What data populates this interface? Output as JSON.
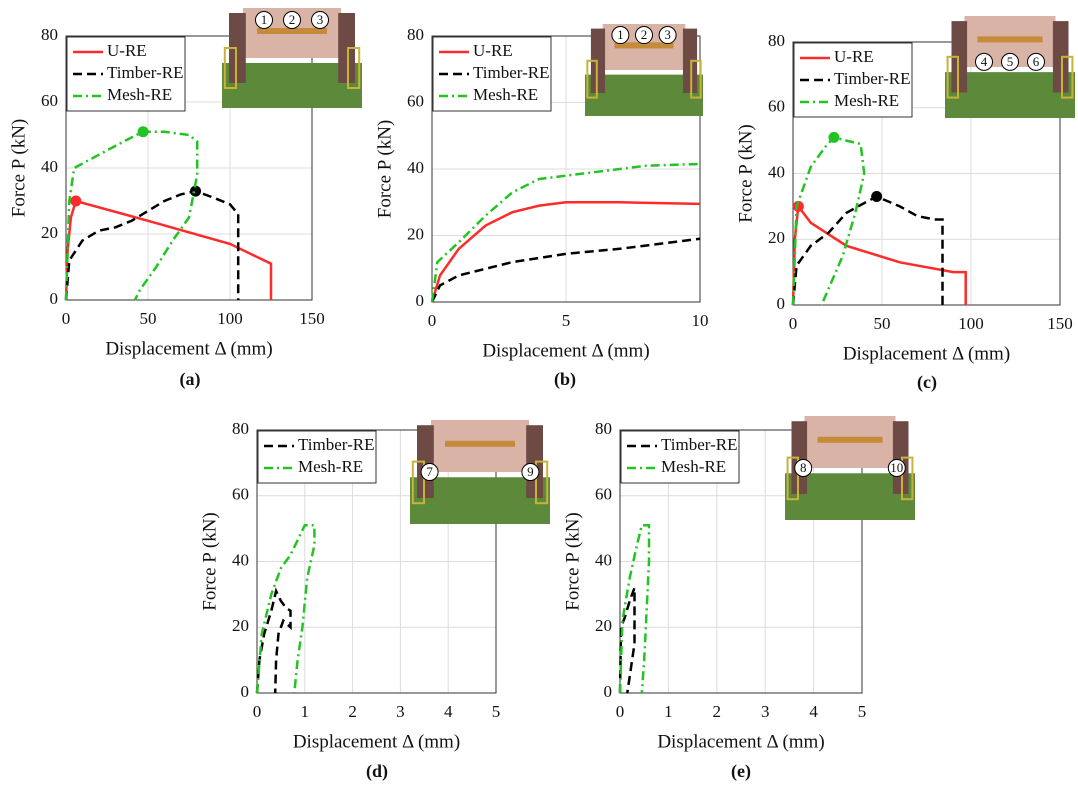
{
  "chart_data": [
    {
      "type": "line",
      "panel_label": "(a)",
      "x_label": "Displacement Δ (mm)",
      "y_label": "Force P (kN)",
      "xlim": [
        0,
        150
      ],
      "xticks": [
        0,
        50,
        100,
        150
      ],
      "ylim": [
        0,
        80
      ],
      "yticks": [
        0,
        20,
        40,
        60,
        80
      ],
      "grid": true,
      "legend": "upper left",
      "inset_labels": [
        "1",
        "2",
        "3"
      ],
      "series": [
        {
          "name": "U-RE",
          "color": "#ff2a2a",
          "line_style": "solid",
          "x": [
            0,
            1,
            3,
            6,
            50,
            100,
            125,
            125
          ],
          "values": [
            0,
            15,
            25,
            30,
            24,
            17,
            11,
            0
          ],
          "peak": {
            "x": 6,
            "y": 30
          }
        },
        {
          "name": "Timber-RE",
          "color": "#000000",
          "line_style": "dashed",
          "x": [
            0,
            2,
            10,
            20,
            30,
            40,
            50,
            60,
            70,
            79,
            90,
            100,
            105,
            105
          ],
          "values": [
            0,
            12,
            18,
            21,
            22,
            24,
            27,
            30,
            32,
            33,
            31,
            29,
            26,
            0
          ],
          "peak": {
            "x": 79,
            "y": 33
          }
        },
        {
          "name": "Mesh-RE",
          "color": "#22c422",
          "line_style": "dashdot",
          "x": [
            0,
            2,
            5,
            20,
            35,
            47,
            60,
            75,
            80,
            80,
            75,
            65,
            55,
            45,
            42
          ],
          "values": [
            0,
            30,
            40,
            44,
            48,
            51,
            51,
            50,
            48,
            38,
            25,
            18,
            10,
            3,
            0
          ],
          "peak": {
            "x": 47,
            "y": 51
          }
        }
      ]
    },
    {
      "type": "line",
      "panel_label": "(b)",
      "x_label": "Displacement Δ (mm)",
      "y_label": "Force P (kN)",
      "xlim": [
        0,
        10
      ],
      "xticks": [
        0,
        5,
        10
      ],
      "ylim": [
        0,
        80
      ],
      "yticks": [
        0,
        20,
        40,
        60,
        80
      ],
      "grid": true,
      "legend": "upper left",
      "inset_labels": [
        "1",
        "2",
        "3"
      ],
      "series": [
        {
          "name": "U-RE",
          "color": "#ff2a2a",
          "line_style": "solid",
          "x": [
            0,
            0.3,
            1,
            2,
            3,
            4,
            5,
            7,
            10
          ],
          "values": [
            0,
            8,
            16,
            23,
            27,
            29,
            30,
            30,
            29.5
          ]
        },
        {
          "name": "Timber-RE",
          "color": "#000000",
          "line_style": "dashed",
          "x": [
            0,
            0.3,
            1,
            3,
            5,
            7,
            10
          ],
          "values": [
            0,
            5,
            8,
            12,
            14.5,
            16,
            19
          ]
        },
        {
          "name": "Mesh-RE",
          "color": "#22c422",
          "line_style": "dashdot",
          "x": [
            0,
            0.2,
            1,
            2,
            3,
            4,
            5,
            7,
            8,
            10
          ],
          "values": [
            0,
            12,
            18,
            26,
            33,
            37,
            38,
            40,
            41,
            41.5
          ]
        }
      ]
    },
    {
      "type": "line",
      "panel_label": "(c)",
      "x_label": "Displacement Δ (mm)",
      "y_label": "Force P (kN)",
      "xlim": [
        0,
        150
      ],
      "xticks": [
        0,
        50,
        100,
        150
      ],
      "ylim": [
        0,
        80
      ],
      "yticks": [
        0,
        20,
        40,
        60,
        80
      ],
      "grid": true,
      "legend": "upper left",
      "inset_labels": [
        "4",
        "5",
        "6"
      ],
      "series": [
        {
          "name": "U-RE",
          "color": "#ff2a2a",
          "line_style": "solid",
          "x": [
            0,
            1,
            3,
            10,
            30,
            60,
            90,
            97,
            97
          ],
          "values": [
            0,
            20,
            30,
            25,
            18,
            13,
            10,
            10,
            0
          ],
          "peak": {
            "x": 3,
            "y": 30
          }
        },
        {
          "name": "Timber-RE",
          "color": "#000000",
          "line_style": "dashed",
          "x": [
            0,
            2,
            10,
            20,
            30,
            40,
            47,
            60,
            70,
            80,
            84,
            84
          ],
          "values": [
            0,
            12,
            18,
            22,
            28,
            31,
            33,
            30,
            27,
            26,
            26,
            0
          ],
          "peak": {
            "x": 47,
            "y": 33
          }
        },
        {
          "name": "Mesh-RE",
          "color": "#22c422",
          "line_style": "dashdot",
          "x": [
            0,
            2,
            10,
            18,
            23,
            30,
            38,
            40,
            35,
            28,
            20,
            16
          ],
          "values": [
            0,
            30,
            42,
            48,
            51,
            50,
            49,
            40,
            28,
            15,
            5,
            0
          ],
          "peak": {
            "x": 23,
            "y": 51
          }
        }
      ]
    },
    {
      "type": "line",
      "panel_label": "(d)",
      "x_label": "Displacement Δ (mm)",
      "y_label": "Force P (kN)",
      "xlim": [
        0,
        5
      ],
      "xticks": [
        0,
        1,
        2,
        3,
        4,
        5
      ],
      "ylim": [
        0,
        80
      ],
      "yticks": [
        0,
        20,
        40,
        60,
        80
      ],
      "grid": true,
      "legend": "upper left",
      "inset_labels": [
        "7",
        "9"
      ],
      "series": [
        {
          "name": "Timber-RE",
          "color": "#000000",
          "line_style": "dashed",
          "x": [
            0,
            0.05,
            0.15,
            0.3,
            0.4,
            0.5,
            0.6,
            0.7,
            0.7,
            0.55,
            0.45,
            0.4,
            0.38
          ],
          "values": [
            0,
            10,
            18,
            25,
            31,
            28,
            26,
            25,
            20,
            22,
            18,
            10,
            0
          ]
        },
        {
          "name": "Mesh-RE",
          "color": "#22c422",
          "line_style": "dashdot",
          "x": [
            0,
            0.1,
            0.3,
            0.5,
            0.7,
            0.9,
            1.0,
            1.2,
            1.2,
            1.05,
            0.95,
            0.85,
            0.78
          ],
          "values": [
            0,
            18,
            30,
            38,
            42,
            48,
            51,
            51,
            45,
            35,
            20,
            10,
            0
          ]
        }
      ]
    },
    {
      "type": "line",
      "panel_label": "(e)",
      "x_label": "Displacement Δ (mm)",
      "y_label": "Force P (kN)",
      "xlim": [
        0,
        5
      ],
      "xticks": [
        0,
        1,
        2,
        3,
        4,
        5
      ],
      "ylim": [
        0,
        80
      ],
      "yticks": [
        0,
        20,
        40,
        60,
        80
      ],
      "grid": true,
      "legend": "upper left",
      "inset_labels": [
        "8",
        "10"
      ],
      "series": [
        {
          "name": "Timber-RE",
          "color": "#000000",
          "line_style": "dashed",
          "x": [
            0,
            0.02,
            0.1,
            0.2,
            0.3,
            0.3,
            0.2,
            0.15
          ],
          "values": [
            0,
            20,
            23,
            28,
            32,
            15,
            5,
            0
          ]
        },
        {
          "name": "Mesh-RE",
          "color": "#22c422",
          "line_style": "dashdot",
          "x": [
            0,
            0.05,
            0.2,
            0.35,
            0.45,
            0.6,
            0.6,
            0.55,
            0.5,
            0.45
          ],
          "values": [
            0,
            22,
            35,
            45,
            51,
            51,
            40,
            25,
            10,
            0
          ]
        }
      ]
    }
  ]
}
